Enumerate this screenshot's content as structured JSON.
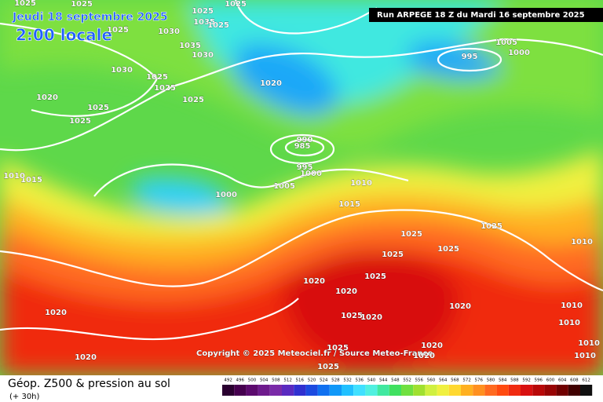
{
  "header": {
    "date": "Jeudi 18 septembre 2025",
    "time": "2:00 locale",
    "run": "Run ARPEGE 18 Z du Mardi 16 septembre 2025"
  },
  "copyright": "Copyright © 2025 Meteociel.fr / Source Meteo-France",
  "footer": {
    "title": "Géop. Z500 & pression au sol",
    "lead": "(+ 30h)"
  },
  "isobar_labels": [
    "1025",
    "1025",
    "1025",
    "1025",
    "1025",
    "1030",
    "1035",
    "1025",
    "1035",
    "1030",
    "1030",
    "1025",
    "1025",
    "1020",
    "1025",
    "1025",
    "1025",
    "1020",
    "995",
    "1005",
    "1000",
    "990",
    "985",
    "995",
    "1000",
    "1005",
    "1010",
    "1015",
    "1000",
    "1015",
    "1010",
    "1025",
    "1025",
    "1025",
    "1025",
    "1010",
    "1025",
    "1020",
    "1020",
    "1025",
    "1020",
    "1020",
    "1010",
    "1010",
    "1010",
    "1010",
    "1020",
    "1020",
    "1020",
    "1025",
    "1020",
    "1025"
  ],
  "scale": {
    "values": [
      492,
      496,
      500,
      504,
      508,
      512,
      516,
      520,
      524,
      528,
      532,
      536,
      540,
      544,
      548,
      552,
      556,
      560,
      564,
      568,
      572,
      576,
      580,
      584,
      588,
      592,
      596,
      600,
      604,
      608,
      612
    ],
    "colors": [
      "#2a0030",
      "#46004f",
      "#5c0a6e",
      "#6e1a8c",
      "#7a2aa8",
      "#5a2ac0",
      "#3030d0",
      "#1c4ae0",
      "#1070f0",
      "#1098f8",
      "#20c0ff",
      "#40e0ff",
      "#50f0e0",
      "#40e8a0",
      "#40e060",
      "#70e040",
      "#a0e030",
      "#d0f040",
      "#f0f040",
      "#ffd830",
      "#ffb020",
      "#ff9020",
      "#ff6a20",
      "#ff4a10",
      "#f02a10",
      "#d81010",
      "#b80808",
      "#980404",
      "#700000",
      "#400000",
      "#101010"
    ]
  }
}
